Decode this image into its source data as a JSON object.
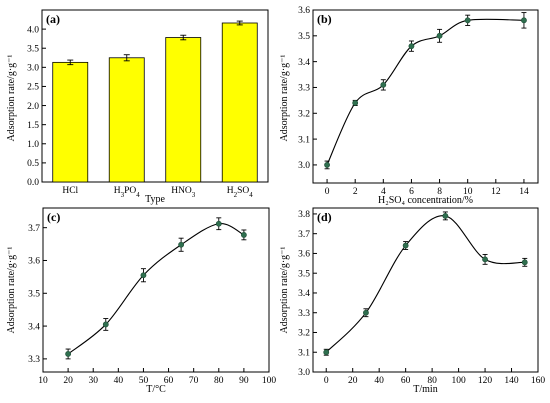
{
  "chart_data": [
    {
      "panel": "(a)",
      "type": "bar",
      "categories": [
        "HCl",
        "H3PO4",
        "HNO3",
        "H2SO4"
      ],
      "values": [
        3.13,
        3.25,
        3.78,
        4.16
      ],
      "errors": [
        0.06,
        0.08,
        0.06,
        0.05
      ],
      "xlabel": "Type",
      "ylabel": "Adsorption rate/g·g⁻¹",
      "ylim": [
        0,
        4.5
      ],
      "yticks": [
        "0.0",
        "0.5",
        "1.0",
        "1.5",
        "2.0",
        "2.5",
        "3.0",
        "3.5",
        "4.0"
      ]
    },
    {
      "panel": "(b)",
      "type": "line",
      "x": [
        0,
        2,
        4,
        6,
        8,
        10,
        14
      ],
      "y": [
        3.0,
        3.24,
        3.31,
        3.46,
        3.5,
        3.56,
        3.56
      ],
      "errors": [
        0.015,
        0.01,
        0.02,
        0.02,
        0.025,
        0.02,
        0.03
      ],
      "xlabel": "H₂SO₄ concentration/%",
      "ylabel": "Adsorption rate/g·g⁻¹",
      "xlim": [
        -1,
        15
      ],
      "ylim": [
        2.93,
        3.6
      ],
      "xticks": [
        "0",
        "2",
        "4",
        "6",
        "8",
        "10",
        "12",
        "14"
      ],
      "yticks": [
        "3.0",
        "3.1",
        "3.2",
        "3.3",
        "3.4",
        "3.5",
        "3.6"
      ]
    },
    {
      "panel": "(c)",
      "type": "line",
      "x": [
        20,
        35,
        50,
        65,
        80,
        90
      ],
      "y": [
        3.315,
        3.405,
        3.555,
        3.648,
        3.712,
        3.678
      ],
      "errors": [
        0.015,
        0.018,
        0.02,
        0.02,
        0.018,
        0.015
      ],
      "xlabel": "T/°C",
      "ylabel": "Adsorption rate/g·g⁻¹",
      "xlim": [
        10,
        100
      ],
      "ylim": [
        3.26,
        3.76
      ],
      "xticks": [
        "10",
        "20",
        "30",
        "40",
        "50",
        "60",
        "70",
        "80",
        "90",
        "100"
      ],
      "yticks": [
        "3.3",
        "3.4",
        "3.5",
        "3.6",
        "3.7"
      ]
    },
    {
      "panel": "(d)",
      "type": "line",
      "x": [
        0,
        30,
        60,
        90,
        120,
        150
      ],
      "y": [
        3.1,
        3.3,
        3.64,
        3.79,
        3.57,
        3.555
      ],
      "errors": [
        0.015,
        0.02,
        0.02,
        0.02,
        0.025,
        0.02
      ],
      "xlabel": "T/min",
      "ylabel": "Adsorption rate/g·g⁻¹",
      "xlim": [
        -10,
        160
      ],
      "ylim": [
        3.0,
        3.83
      ],
      "xticks": [
        "0",
        "20",
        "40",
        "60",
        "80",
        "100",
        "120",
        "140",
        "160"
      ],
      "yticks": [
        "3.0",
        "3.1",
        "3.2",
        "3.3",
        "3.4",
        "3.5",
        "3.6",
        "3.7",
        "3.8"
      ]
    }
  ]
}
